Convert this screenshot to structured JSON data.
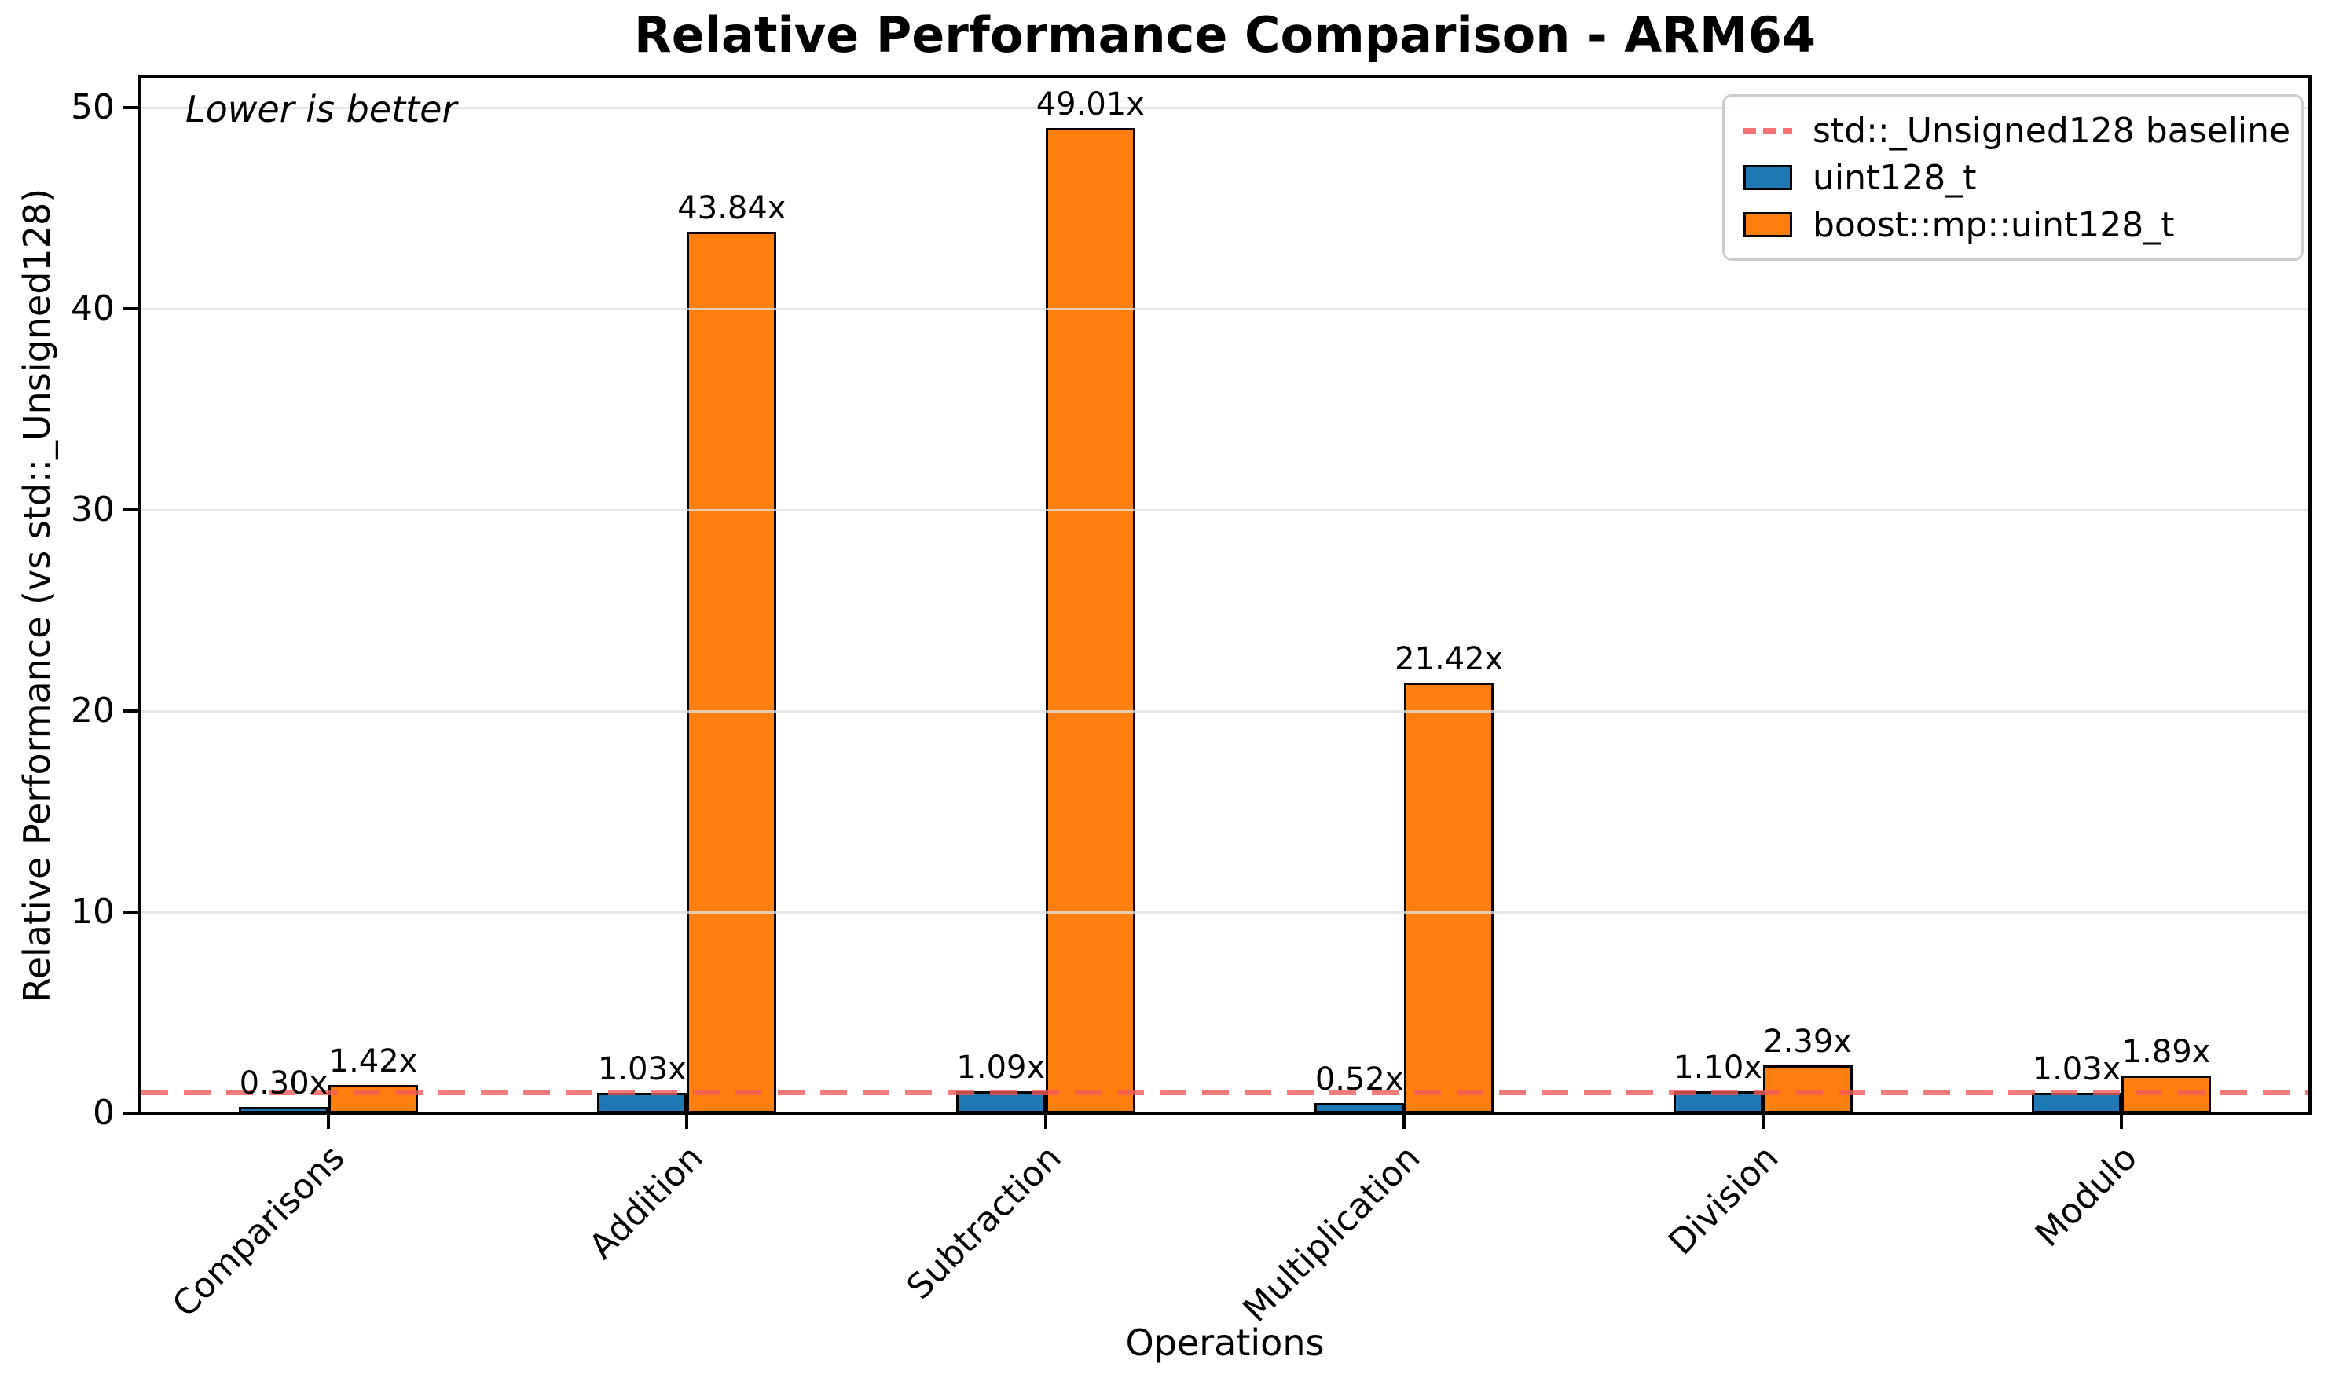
{
  "title": "Relative Performance Comparison - ARM64",
  "annotation": "Lower is better",
  "x_axis": {
    "label": "Operations"
  },
  "y_axis": {
    "label": "Relative Performance (vs std::_Unsigned128)"
  },
  "legend": {
    "items": [
      {
        "label": "std::_Unsigned128 baseline",
        "swatch": "dashed-line",
        "color": "#f47c7c"
      },
      {
        "label": "uint128_t",
        "swatch": "rect",
        "color": "#1f77b4"
      },
      {
        "label": "boost::mp::uint128_t",
        "swatch": "rect",
        "color": "#ff7f0e"
      }
    ]
  },
  "chart_data": {
    "type": "bar",
    "title": "Relative Performance Comparison - ARM64",
    "xlabel": "Operations",
    "ylabel": "Relative Performance (vs std::_Unsigned128)",
    "annotation": "Lower is better",
    "categories": [
      "Comparisons",
      "Addition",
      "Subtraction",
      "Multiplication",
      "Division",
      "Modulo"
    ],
    "series": [
      {
        "name": "uint128_t",
        "color": "#1f77b4",
        "values": [
          0.3,
          1.03,
          1.09,
          0.52,
          1.1,
          1.03
        ],
        "labels": [
          "0.30x",
          "1.03x",
          "1.09x",
          "0.52x",
          "1.10x",
          "1.03x"
        ]
      },
      {
        "name": "boost::mp::uint128_t",
        "color": "#ff7f0e",
        "values": [
          1.42,
          43.84,
          49.01,
          21.42,
          2.39,
          1.89
        ],
        "labels": [
          "1.42x",
          "43.84x",
          "49.01x",
          "21.42x",
          "2.39x",
          "1.89x"
        ]
      }
    ],
    "baseline": {
      "value": 1,
      "label": "std::_Unsigned128 baseline",
      "color": "#f47c7c",
      "style": "dashed"
    },
    "y_ticks": [
      0,
      10,
      20,
      30,
      40,
      50
    ],
    "ylim": [
      0,
      51.5
    ],
    "grid": true,
    "legend_position": "upper right"
  }
}
